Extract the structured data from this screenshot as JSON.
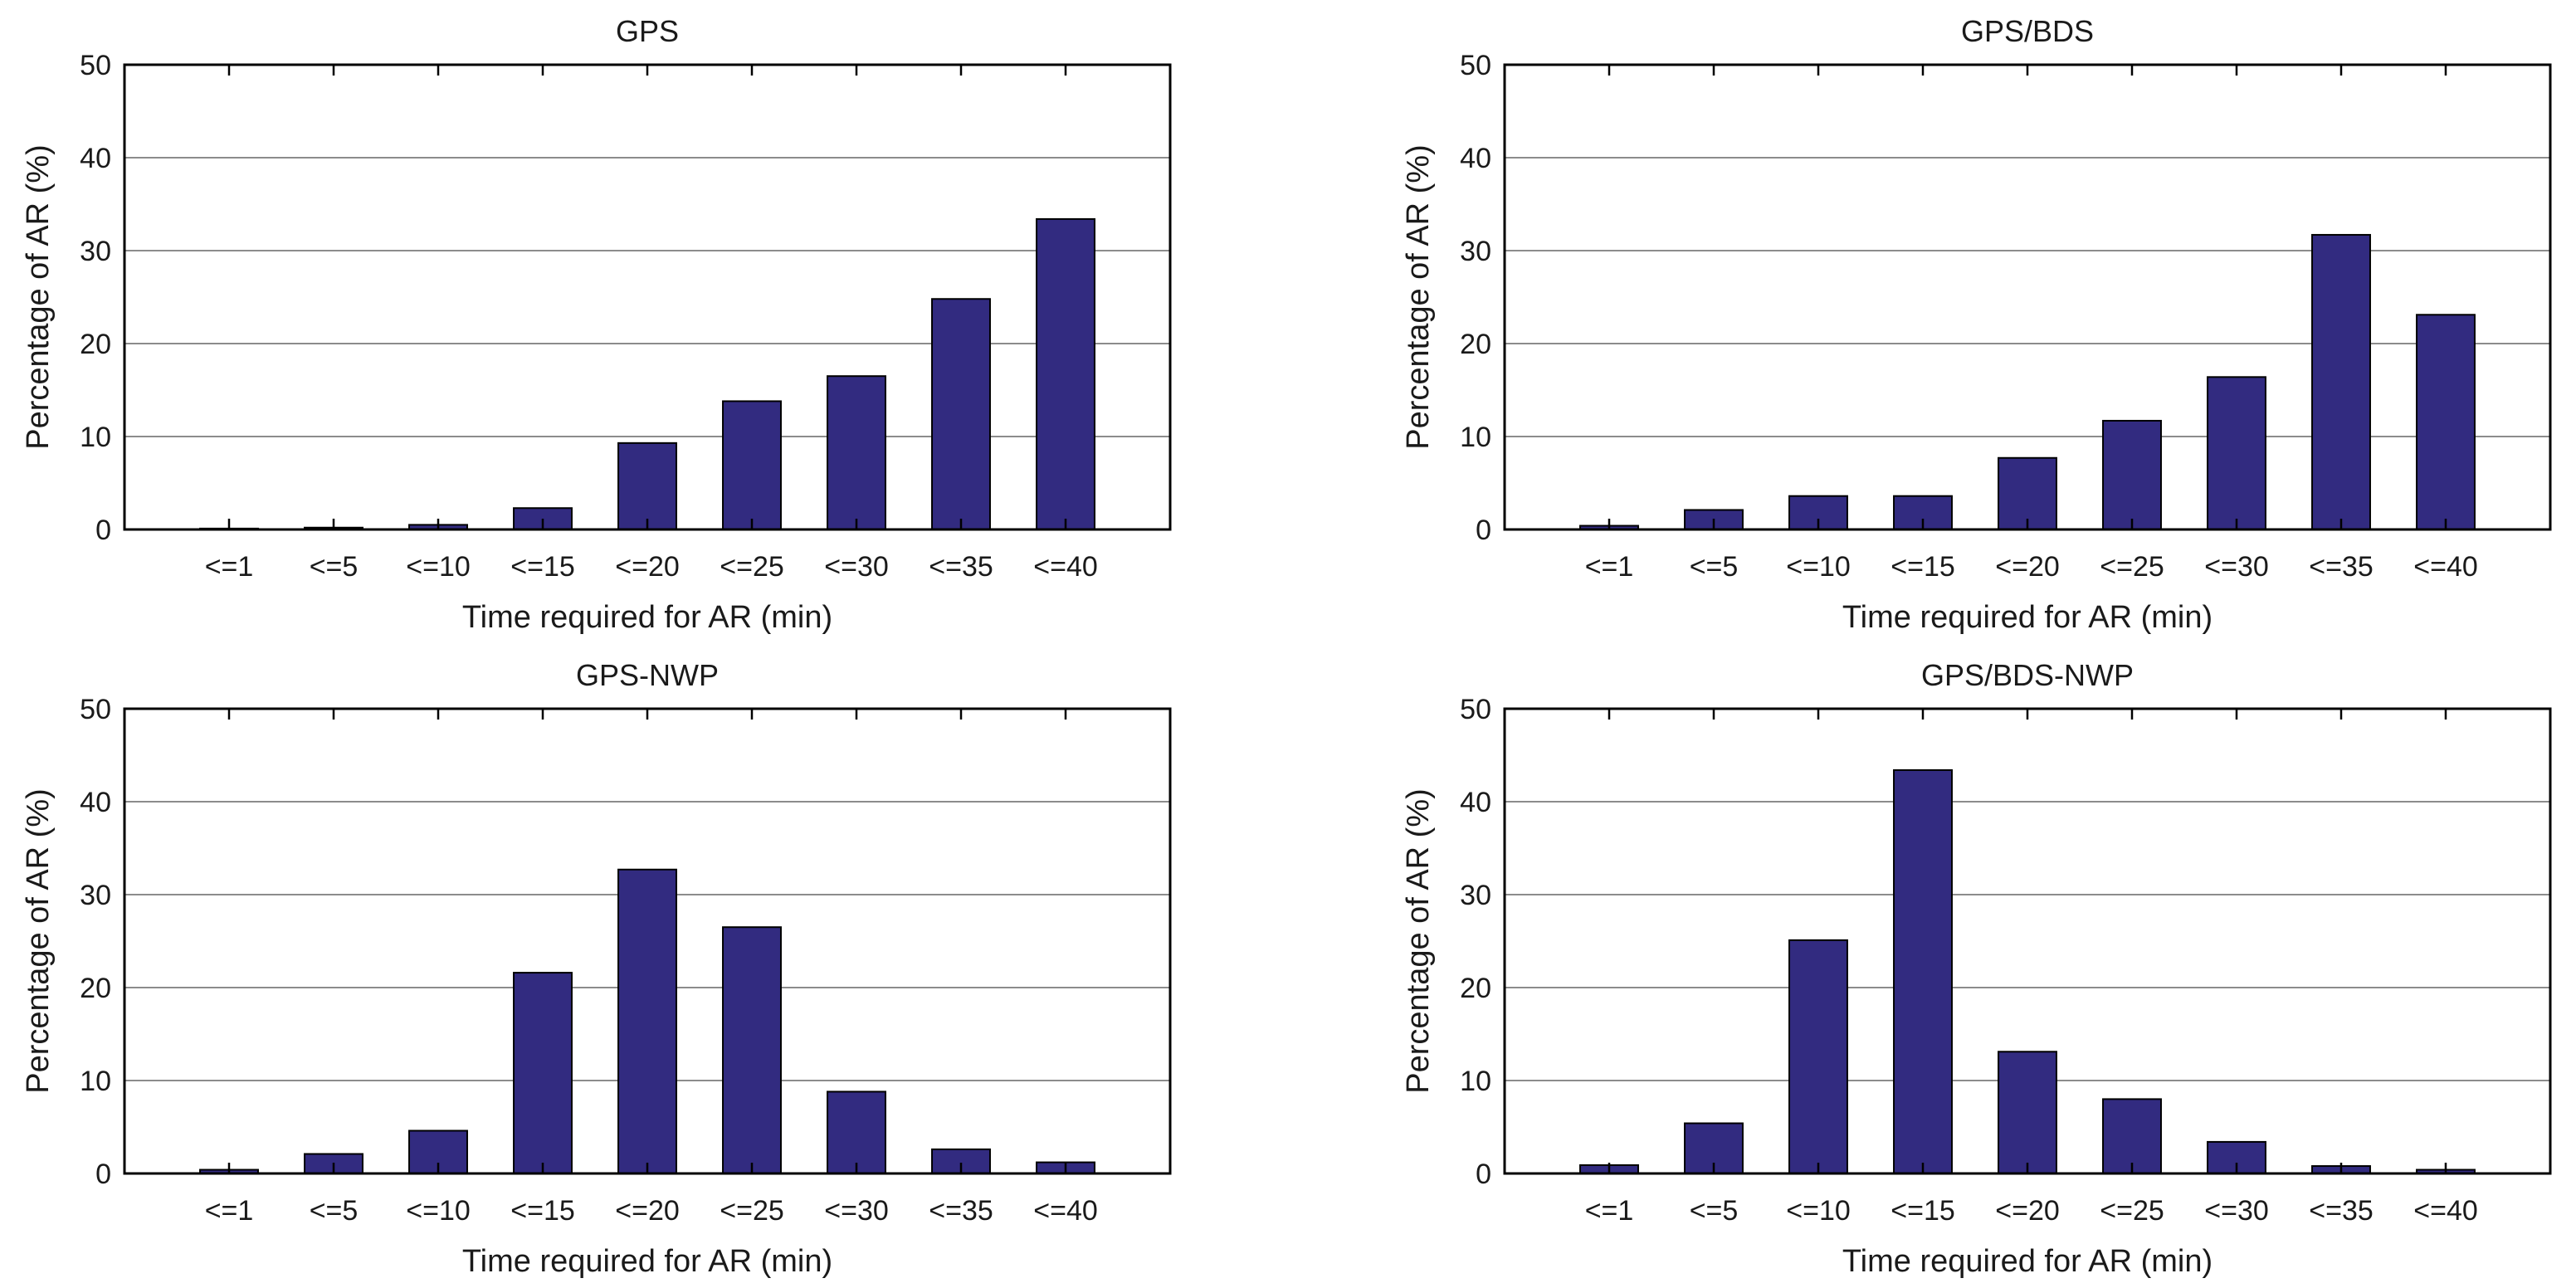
{
  "figure": {
    "background": "#ffffff",
    "bar_color": "#322B80",
    "bar_edge_color": "#000000",
    "grid_color": "#8c8c8c",
    "axis_color": "#000000",
    "text_color": "#1a1a1a"
  },
  "chart_data": [
    {
      "type": "bar",
      "title": "GPS",
      "categories": [
        "<=1",
        "<=5",
        "<=10",
        "<=15",
        "<=20",
        "<=25",
        "<=30",
        "<=35",
        "<=40"
      ],
      "values": [
        0.1,
        0.2,
        0.5,
        2.3,
        9.3,
        13.8,
        16.5,
        24.8,
        33.4
      ],
      "xlabel": "Time required for AR (min)",
      "ylabel": "Percentage of AR (%)",
      "ylim": [
        0,
        50
      ],
      "yticks": [
        0,
        10,
        20,
        30,
        40,
        50
      ],
      "grid": true,
      "legend": null
    },
    {
      "type": "bar",
      "title": "GPS/BDS",
      "categories": [
        "<=1",
        "<=5",
        "<=10",
        "<=15",
        "<=20",
        "<=25",
        "<=30",
        "<=35",
        "<=40"
      ],
      "values": [
        0.4,
        2.1,
        3.6,
        3.6,
        7.7,
        11.7,
        16.4,
        31.7,
        23.1
      ],
      "xlabel": "Time required for AR (min)",
      "ylabel": "Percentage of AR (%)",
      "ylim": [
        0,
        50
      ],
      "yticks": [
        0,
        10,
        20,
        30,
        40,
        50
      ],
      "grid": true,
      "legend": null
    },
    {
      "type": "bar",
      "title": "GPS-NWP",
      "categories": [
        "<=1",
        "<=5",
        "<=10",
        "<=15",
        "<=20",
        "<=25",
        "<=30",
        "<=35",
        "<=40"
      ],
      "values": [
        0.4,
        2.1,
        4.6,
        21.6,
        32.7,
        26.5,
        8.8,
        2.6,
        1.2
      ],
      "xlabel": "Time required for AR (min)",
      "ylabel": "Percentage of AR (%)",
      "ylim": [
        0,
        50
      ],
      "yticks": [
        0,
        10,
        20,
        30,
        40,
        50
      ],
      "grid": true,
      "legend": null
    },
    {
      "type": "bar",
      "title": "GPS/BDS-NWP",
      "categories": [
        "<=1",
        "<=5",
        "<=10",
        "<=15",
        "<=20",
        "<=25",
        "<=30",
        "<=35",
        "<=40"
      ],
      "values": [
        0.9,
        5.4,
        25.1,
        43.4,
        13.1,
        8.0,
        3.4,
        0.8,
        0.4
      ],
      "xlabel": "Time required for AR (min)",
      "ylabel": "Percentage of AR (%)",
      "ylim": [
        0,
        50
      ],
      "yticks": [
        0,
        10,
        20,
        30,
        40,
        50
      ],
      "grid": true,
      "legend": null
    }
  ]
}
